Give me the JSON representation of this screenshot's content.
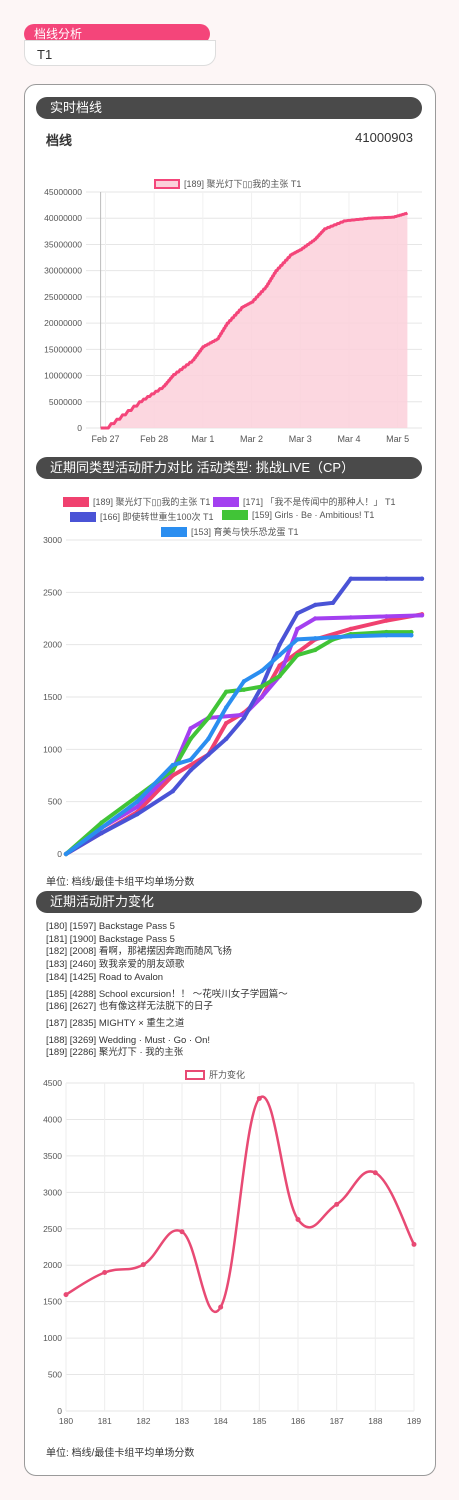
{
  "header": {
    "title": "档线分析",
    "subtitle": "T1"
  },
  "realtime": {
    "section_title": "实时档线",
    "label": "档线",
    "value": "41000903",
    "unit_note": ""
  },
  "comparison": {
    "section_title": "近期同类型活动肝力对比  活动类型: 挑战LIVE（CP）",
    "unit_note": "单位: 档线/最佳卡组平均单场分数"
  },
  "stamina": {
    "section_title": "近期活动肝力变化",
    "events": [
      "[180]  [1597]  Backstage  Pass  5",
      "[181]  [1900]  Backstage  Pass  5",
      "[182]  [2008]  看啊，那裙摆因奔跑而随风飞扬",
      "[183]  [2460]  致我亲爱的朋友颂歌",
      "[184]  [1425]  Road  to  Avalon",
      "[185]  [4288]  School  excursion！！ ～花咲川女子学园篇～",
      "[186]  [2627]  也有像这样无法脱下的日子",
      "[187]  [2835]  MIGHTY × 重生之道",
      "[188]  [3269]  Wedding · Must · Go · On!",
      "[189]  [2286]  聚光灯下 · 我的主张"
    ],
    "unit_note": "单位: 档线/最佳卡组平均单场分数"
  },
  "chart_data": [
    {
      "type": "area",
      "legend": [
        "[189]  聚光灯下▯▯我的主张  T1"
      ],
      "color": "#f4457a",
      "x_ticks": [
        "Feb 27",
        "Feb 28",
        "Mar 1",
        "Mar 2",
        "Mar 3",
        "Mar 4",
        "Mar 5"
      ],
      "y_ticks": [
        "0",
        "5000000",
        "10000000",
        "15000000",
        "20000000",
        "25000000",
        "30000000",
        "35000000",
        "40000000",
        "45000000"
      ],
      "ylim": [
        0,
        45000000
      ],
      "series": [
        {
          "name": "[189] 聚光灯下▯▯我的主张 T1",
          "x": [
            0,
            0.1,
            0.8,
            1.3,
            1.5,
            1.9,
            2.1,
            2.4,
            2.6,
            2.9,
            3.1,
            3.4,
            3.6,
            3.9,
            4.1,
            4.4,
            4.6,
            5.0,
            5.5,
            6.0,
            6.3
          ],
          "y": [
            0,
            0,
            5000000,
            8000000,
            10200000,
            13000000,
            15500000,
            17000000,
            20000000,
            23000000,
            24000000,
            27000000,
            30000000,
            33000000,
            34000000,
            36000000,
            38000000,
            39500000,
            40000000,
            40200000,
            41000903
          ]
        }
      ]
    },
    {
      "type": "line",
      "y_ticks": [
        "0",
        "500",
        "1000",
        "1500",
        "2000",
        "2500",
        "3000"
      ],
      "ylim": [
        0,
        3000
      ],
      "series": [
        {
          "name": "[189]  聚光灯下▯▯我的主张  T1",
          "color": "#f0416f",
          "x": [
            0,
            0.1,
            0.2,
            0.3,
            0.4,
            0.45,
            0.5,
            0.55,
            0.6,
            0.7,
            0.8,
            0.9,
            1.0
          ],
          "y": [
            0,
            200,
            400,
            750,
            950,
            1250,
            1350,
            1500,
            1800,
            2050,
            2150,
            2230,
            2290
          ]
        },
        {
          "name": "[171]  「我不是传闻中的那种人！」  T1",
          "color": "#a340f0",
          "x": [
            0,
            0.1,
            0.2,
            0.3,
            0.35,
            0.4,
            0.5,
            0.55,
            0.6,
            0.65,
            0.7,
            0.8,
            0.9,
            1.0
          ],
          "y": [
            0,
            250,
            450,
            800,
            1200,
            1300,
            1330,
            1500,
            1700,
            2150,
            2250,
            2260,
            2270,
            2280
          ]
        },
        {
          "name": "[166]  即使转世重生100次  T1",
          "color": "#4a53d6",
          "x": [
            0,
            0.1,
            0.2,
            0.3,
            0.35,
            0.4,
            0.45,
            0.5,
            0.55,
            0.6,
            0.65,
            0.7,
            0.75,
            0.8,
            0.9,
            1.0
          ],
          "y": [
            0,
            200,
            380,
            600,
            800,
            950,
            1100,
            1300,
            1600,
            2000,
            2300,
            2380,
            2400,
            2630,
            2630,
            2630
          ]
        },
        {
          "name": "[159]  Girls · Be · Ambitious!  T1",
          "color": "#41c437",
          "x": [
            0,
            0.1,
            0.2,
            0.3,
            0.35,
            0.4,
            0.45,
            0.5,
            0.55,
            0.6,
            0.65,
            0.7,
            0.75,
            0.8,
            0.9,
            0.97
          ],
          "y": [
            0,
            300,
            550,
            800,
            1100,
            1300,
            1550,
            1570,
            1600,
            1700,
            1900,
            1950,
            2050,
            2100,
            2120,
            2120
          ]
        },
        {
          "name": "[153]  育美与快乐恐龙蛋  T1",
          "color": "#2b8ef0",
          "x": [
            0,
            0.1,
            0.2,
            0.3,
            0.35,
            0.4,
            0.45,
            0.5,
            0.55,
            0.6,
            0.65,
            0.7,
            0.8,
            0.9,
            0.97
          ],
          "y": [
            0,
            250,
            500,
            850,
            900,
            1100,
            1400,
            1650,
            1750,
            1900,
            2050,
            2060,
            2080,
            2090,
            2090
          ]
        }
      ]
    },
    {
      "type": "line",
      "legend": [
        "肝力变化"
      ],
      "color": "#e84a74",
      "categories": [
        "180",
        "181",
        "182",
        "183",
        "184",
        "185",
        "186",
        "187",
        "188",
        "189"
      ],
      "y_ticks": [
        "0",
        "500",
        "1000",
        "1500",
        "2000",
        "2500",
        "3000",
        "3500",
        "4000",
        "4500"
      ],
      "ylim": [
        0,
        4500
      ],
      "series": [
        {
          "name": "肝力变化",
          "values": [
            1597,
            1900,
            2008,
            2460,
            1425,
            4288,
            2627,
            2835,
            3269,
            2286
          ]
        }
      ]
    }
  ]
}
